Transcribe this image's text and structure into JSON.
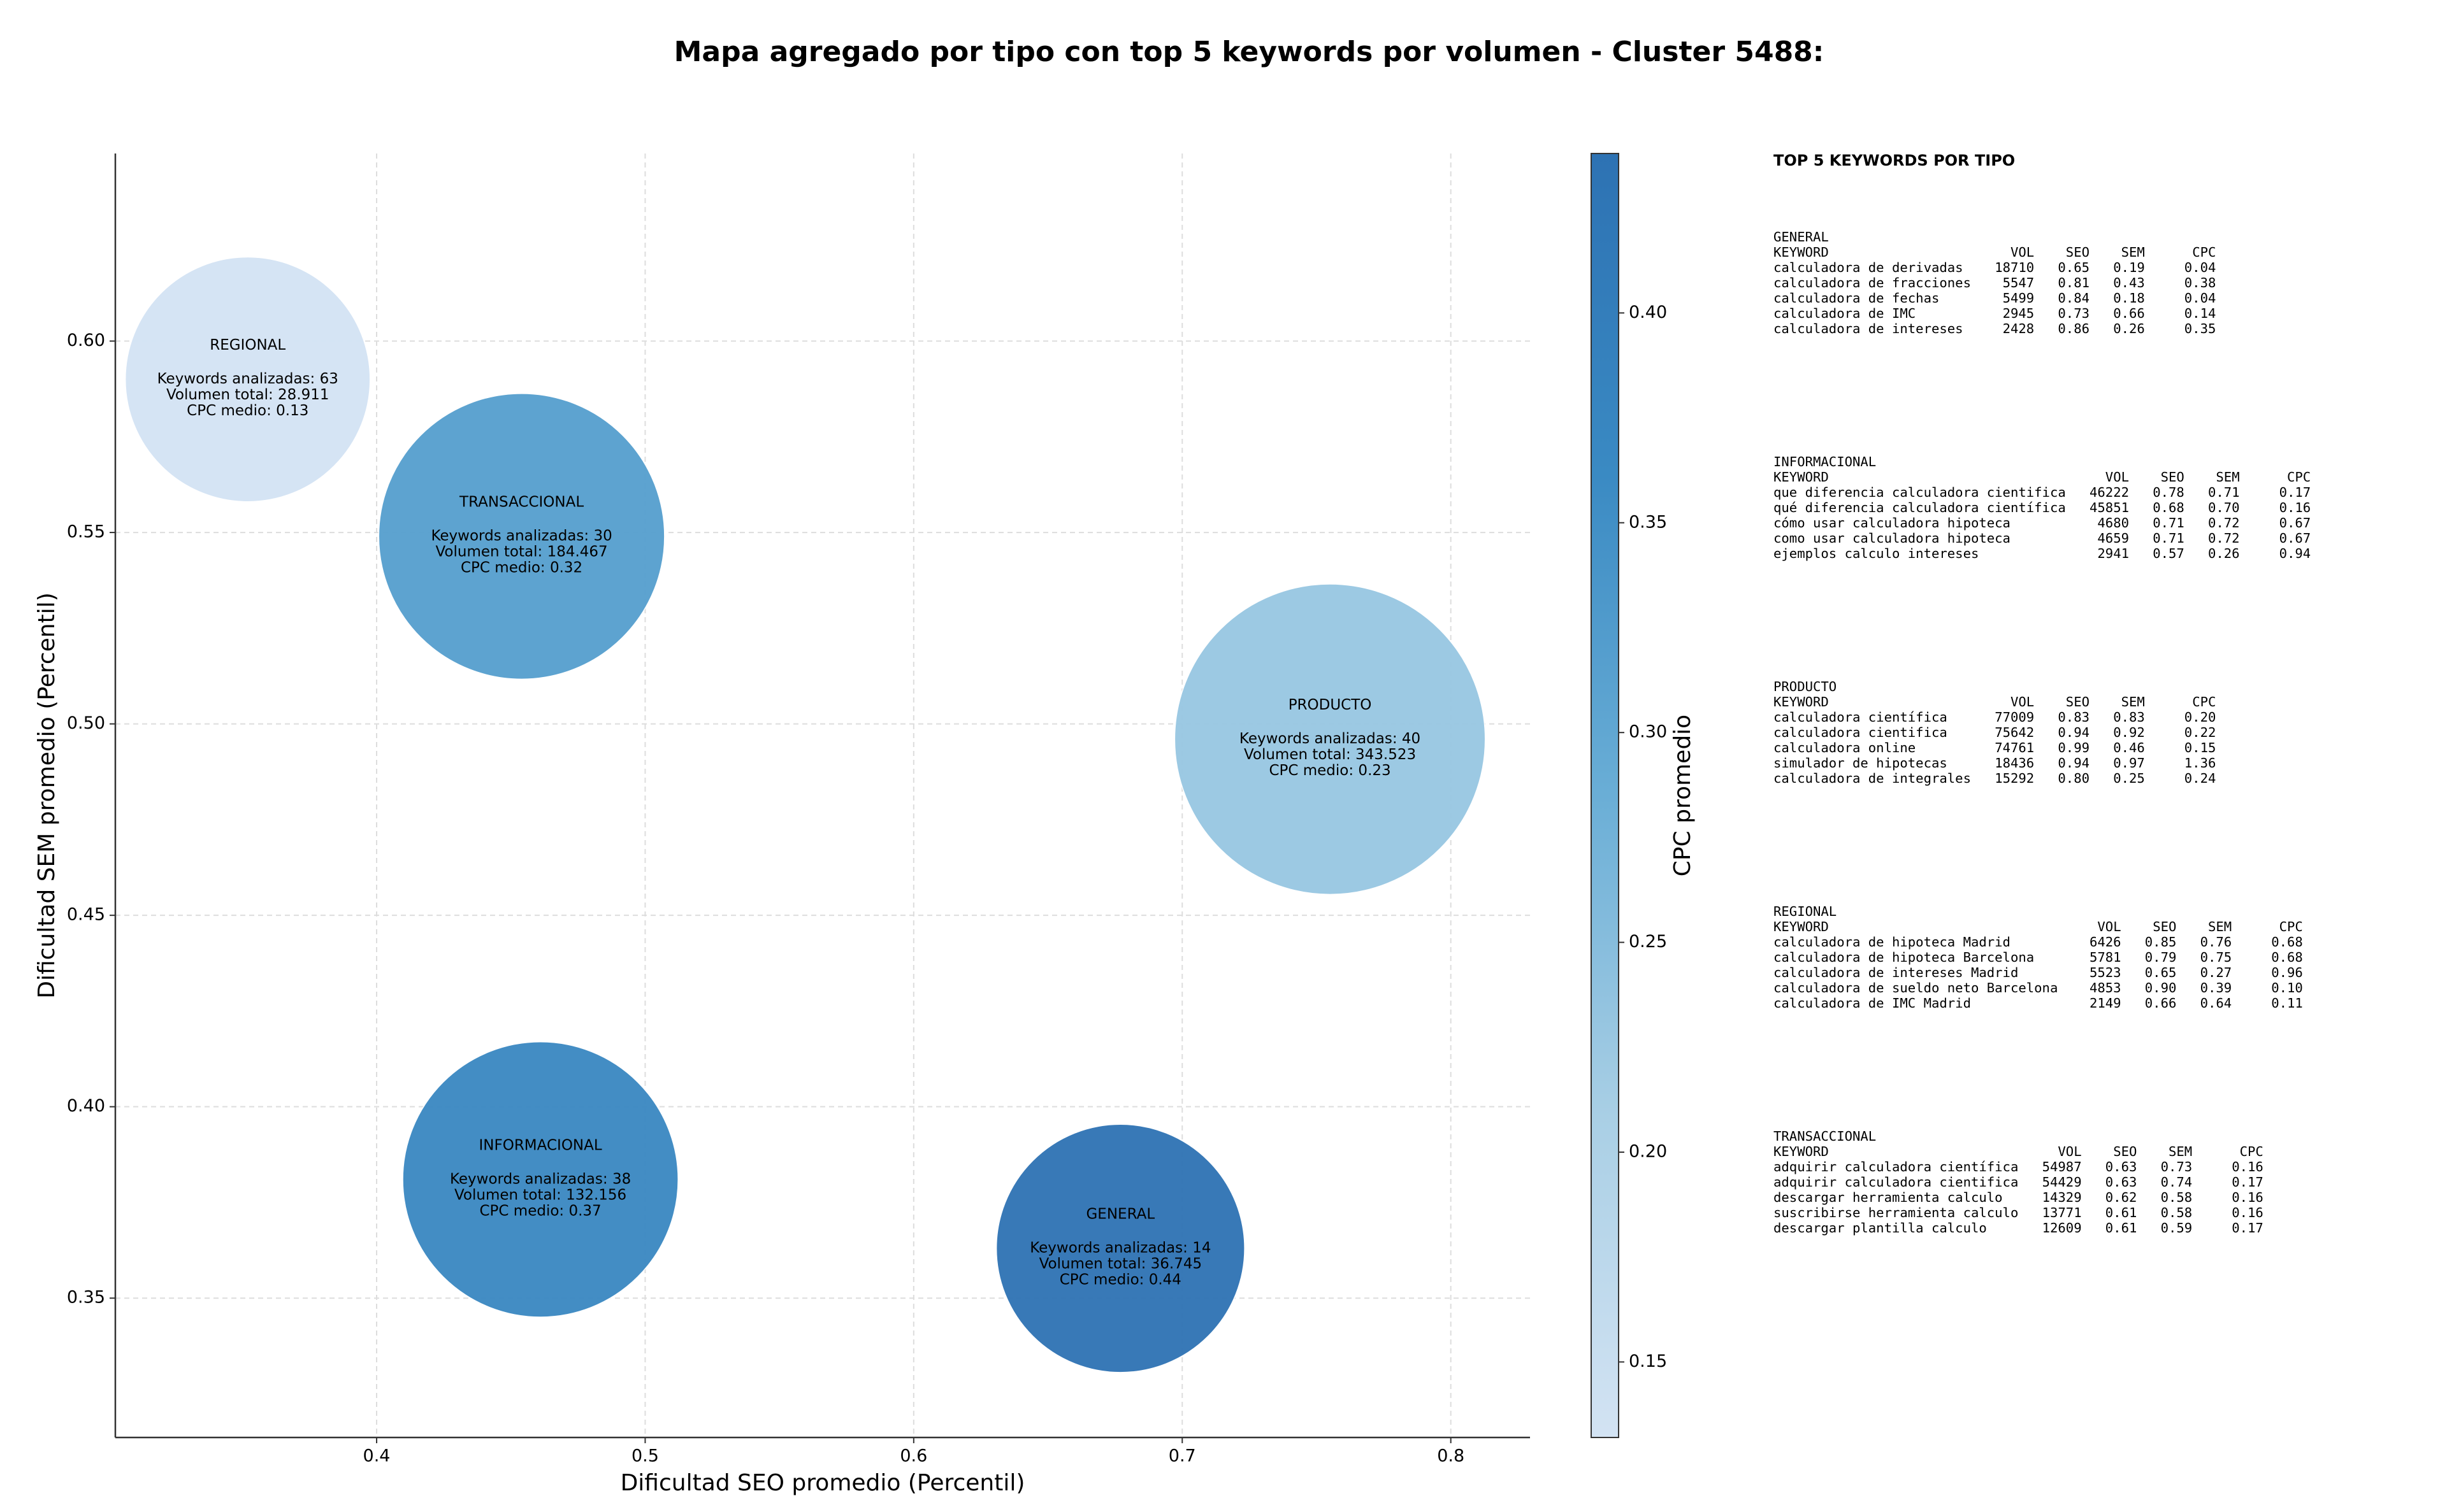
{
  "chart_data": {
    "type": "bubble",
    "title": "Mapa agregado por tipo con top 5 keywords por volumen - Cluster 5488:",
    "xlabel": "Dificultad SEO promedio (Percentil)",
    "ylabel": "Dificultad SEM promedio (Percentil)",
    "xlim": [
      0.3027,
      0.8295
    ],
    "ylim": [
      0.3136,
      0.649
    ],
    "xticks": [
      0.4,
      0.5,
      0.6,
      0.7,
      0.8
    ],
    "yticks": [
      0.35,
      {
        "value": 0.4,
        "label": "0.40"
      },
      0.45,
      {
        "value": 0.5,
        "label": "0.50"
      },
      0.55,
      {
        "value": 0.6,
        "label": "0.60"
      }
    ],
    "grid": true,
    "colorbar": {
      "label": "CPC promedio",
      "lim": [
        0.132,
        0.438
      ],
      "ticks": [
        0.15,
        {
          "value": 0.2,
          "label": "0.20"
        },
        0.25,
        {
          "value": 0.3,
          "label": "0.30"
        },
        0.35,
        {
          "value": 0.4,
          "label": "0.40"
        }
      ],
      "cmap": [
        "#d3e3f3",
        "#a9cfe5",
        "#6aaed6",
        "#3a8ac3",
        "#2d72b3"
      ]
    },
    "points": [
      {
        "name": "REGIONAL",
        "x": 0.352,
        "y": 0.59,
        "cpc": 0.13,
        "volume": 28911,
        "lines": [
          "Keywords analizadas: 63",
          "Volumen total: 28.911",
          "CPC medio: 0.13"
        ]
      },
      {
        "name": "TRANSACCIONAL",
        "x": 0.454,
        "y": 0.549,
        "cpc": 0.32,
        "volume": 184467,
        "lines": [
          "Keywords analizadas: 30",
          "Volumen total: 184.467",
          "CPC medio: 0.32"
        ]
      },
      {
        "name": "PRODUCTO",
        "x": 0.755,
        "y": 0.496,
        "cpc": 0.23,
        "volume": 343523,
        "lines": [
          "Keywords analizadas: 40",
          "Volumen total: 343.523",
          "CPC medio: 0.23"
        ]
      },
      {
        "name": "INFORMACIONAL",
        "x": 0.461,
        "y": 0.381,
        "cpc": 0.37,
        "volume": 132156,
        "lines": [
          "Keywords analizadas: 38",
          "Volumen total: 132.156",
          "CPC medio: 0.37"
        ]
      },
      {
        "name": "GENERAL",
        "x": 0.677,
        "y": 0.363,
        "cpc": 0.44,
        "volume": 36745,
        "lines": [
          "Keywords analizadas: 14",
          "Volumen total: 36.745",
          "CPC medio: 0.44"
        ]
      }
    ]
  },
  "keyword_panel": {
    "title": "TOP 5 KEYWORDS POR TIPO",
    "columns": [
      "KEYWORD",
      "VOL",
      "SEO",
      "SEM",
      "CPC"
    ],
    "sections": [
      {
        "name": "GENERAL",
        "rows": [
          [
            "calculadora de derivadas",
            "18710",
            "0.65",
            "0.19",
            "0.04"
          ],
          [
            "calculadora de fracciones",
            "5547",
            "0.81",
            "0.43",
            "0.38"
          ],
          [
            "calculadora de fechas",
            "5499",
            "0.84",
            "0.18",
            "0.04"
          ],
          [
            "calculadora de IMC",
            "2945",
            "0.73",
            "0.66",
            "0.14"
          ],
          [
            "calculadora de intereses",
            "2428",
            "0.86",
            "0.26",
            "0.35"
          ]
        ]
      },
      {
        "name": "INFORMACIONAL",
        "rows": [
          [
            "que diferencia calculadora cientifica",
            "46222",
            "0.78",
            "0.71",
            "0.17"
          ],
          [
            "qué diferencia calculadora científica",
            "45851",
            "0.68",
            "0.70",
            "0.16"
          ],
          [
            "cómo usar calculadora hipoteca",
            "4680",
            "0.71",
            "0.72",
            "0.67"
          ],
          [
            "como usar calculadora hipoteca",
            "4659",
            "0.71",
            "0.72",
            "0.67"
          ],
          [
            "ejemplos calculo intereses",
            "2941",
            "0.57",
            "0.26",
            "0.94"
          ]
        ]
      },
      {
        "name": "PRODUCTO",
        "rows": [
          [
            "calculadora científica",
            "77009",
            "0.83",
            "0.83",
            "0.20"
          ],
          [
            "calculadora cientifica",
            "75642",
            "0.94",
            "0.92",
            "0.22"
          ],
          [
            "calculadora online",
            "74761",
            "0.99",
            "0.46",
            "0.15"
          ],
          [
            "simulador de hipotecas",
            "18436",
            "0.94",
            "0.97",
            "1.36"
          ],
          [
            "calculadora de integrales",
            "15292",
            "0.80",
            "0.25",
            "0.24"
          ]
        ]
      },
      {
        "name": "REGIONAL",
        "rows": [
          [
            "calculadora de hipoteca Madrid",
            "6426",
            "0.85",
            "0.76",
            "0.68"
          ],
          [
            "calculadora de hipoteca Barcelona",
            "5781",
            "0.79",
            "0.75",
            "0.68"
          ],
          [
            "calculadora de intereses Madrid",
            "5523",
            "0.65",
            "0.27",
            "0.96"
          ],
          [
            "calculadora de sueldo neto Barcelona",
            "4853",
            "0.90",
            "0.39",
            "0.10"
          ],
          [
            "calculadora de IMC Madrid",
            "2149",
            "0.66",
            "0.64",
            "0.11"
          ]
        ]
      },
      {
        "name": "TRANSACCIONAL",
        "rows": [
          [
            "adquirir calculadora científica",
            "54987",
            "0.63",
            "0.73",
            "0.16"
          ],
          [
            "adquirir calculadora cientifica",
            "54429",
            "0.63",
            "0.74",
            "0.17"
          ],
          [
            "descargar herramienta calculo",
            "14329",
            "0.62",
            "0.58",
            "0.16"
          ],
          [
            "suscribirse herramienta calculo",
            "13771",
            "0.61",
            "0.58",
            "0.16"
          ],
          [
            "descargar plantilla calculo",
            "12609",
            "0.61",
            "0.59",
            "0.17"
          ]
        ]
      }
    ]
  }
}
